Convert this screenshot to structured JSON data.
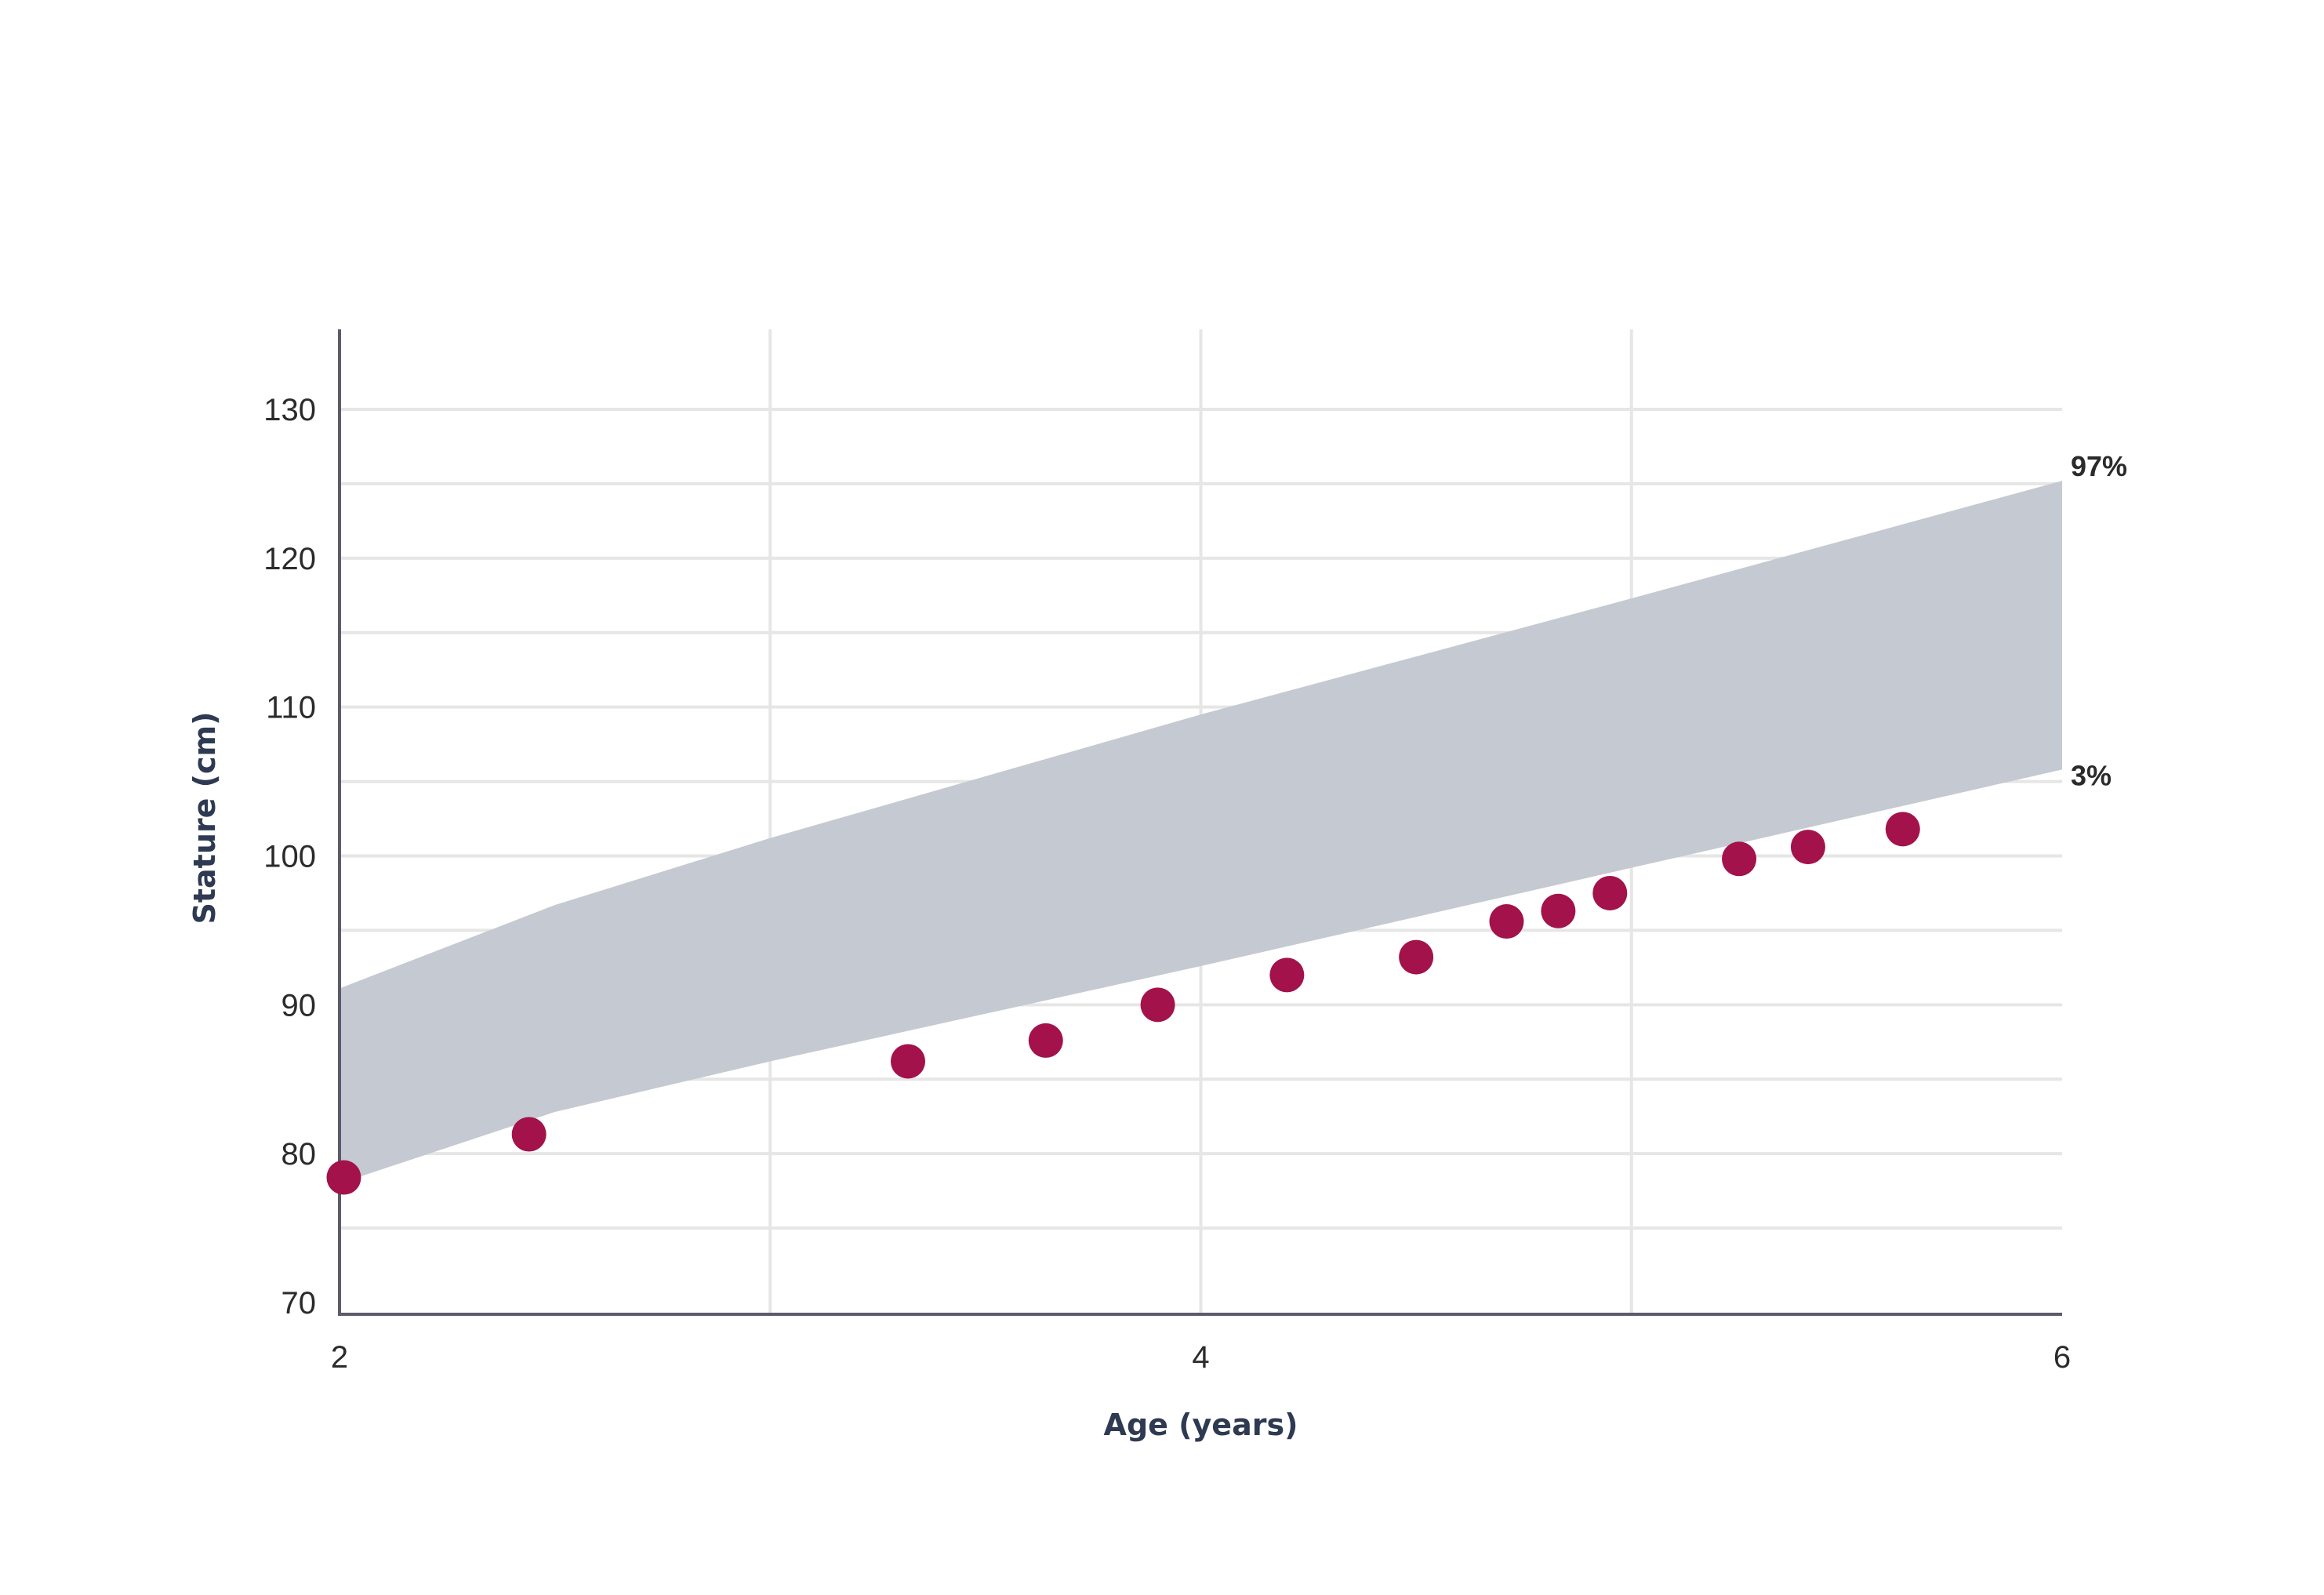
{
  "chart_data": {
    "type": "scatter",
    "xlabel": "Age (years)",
    "ylabel": "Stature (cm)",
    "xlim": [
      2,
      6
    ],
    "ylim": [
      70,
      130
    ],
    "x_ticks": [
      2,
      4,
      6
    ],
    "y_ticks": [
      70,
      80,
      90,
      100,
      110,
      120,
      130
    ],
    "grid": true,
    "colors": {
      "points": "#a3124a",
      "band": "#c5c9d1",
      "grid": "#e6e6e6",
      "axis": "#5b5b6b"
    },
    "band": {
      "upper_label": "97%",
      "lower_label": "3%",
      "x": [
        2.0,
        2.5,
        3.0,
        4.0,
        5.0,
        6.0
      ],
      "upper": [
        91.1,
        96.7,
        101.2,
        109.5,
        117.3,
        125.2
      ],
      "lower": [
        78.0,
        82.8,
        86.2,
        92.6,
        99.2,
        105.8
      ]
    },
    "series": [
      {
        "x": [
          2.01,
          2.44,
          3.32,
          3.64,
          3.9,
          4.2,
          4.5,
          4.71,
          4.83,
          4.95,
          5.25,
          5.41,
          5.63
        ],
        "y": [
          78.4,
          81.3,
          86.2,
          87.6,
          90.0,
          92.0,
          93.2,
          95.6,
          96.3,
          97.5,
          99.8,
          100.6,
          101.8
        ]
      }
    ]
  }
}
